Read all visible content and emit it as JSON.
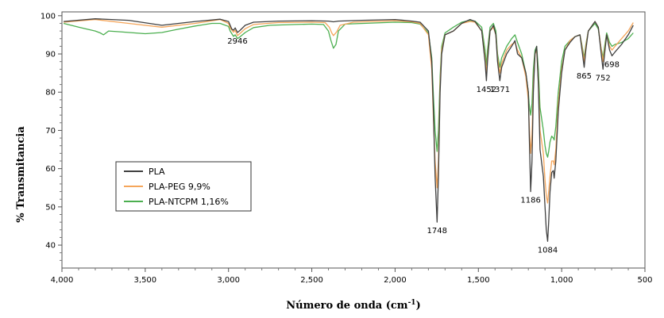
{
  "chart_data": {
    "type": "line",
    "title": "",
    "xlabel": "Número de onda (cm",
    "xlabel_sup": "-1",
    "xlabel_end": ")",
    "ylabel": "% Transmitancia",
    "xlim": [
      4000,
      500
    ],
    "ylim": [
      34,
      101
    ],
    "x_ticks": [
      4000,
      3500,
      3000,
      2500,
      2000,
      1500,
      1000,
      500
    ],
    "x_tick_labels": [
      "4,000",
      "3,500",
      "3,000",
      "2,500",
      "2,000",
      "1,500",
      "1,000",
      "500"
    ],
    "y_ticks": [
      40,
      50,
      60,
      70,
      80,
      90,
      100
    ],
    "y_tick_labels": [
      "40",
      "50",
      "60",
      "70",
      "80",
      "90",
      "100"
    ],
    "legend_position": "bottom-left",
    "grid": false,
    "series": [
      {
        "name": "PLA",
        "color": "#404040",
        "points": [
          [
            3990,
            98.5
          ],
          [
            3800,
            99.2
          ],
          [
            3600,
            98.8
          ],
          [
            3400,
            97.5
          ],
          [
            3200,
            98.5
          ],
          [
            3050,
            99.1
          ],
          [
            3000,
            98.5
          ],
          [
            2990,
            97.5
          ],
          [
            2980,
            96.5
          ],
          [
            2970,
            96.2
          ],
          [
            2960,
            96.8
          ],
          [
            2946,
            95.6
          ],
          [
            2930,
            96.2
          ],
          [
            2900,
            97.5
          ],
          [
            2850,
            98.3
          ],
          [
            2700,
            98.6
          ],
          [
            2500,
            98.7
          ],
          [
            2400,
            98.6
          ],
          [
            2370,
            98.4
          ],
          [
            2340,
            98.6
          ],
          [
            2200,
            98.8
          ],
          [
            2000,
            99.0
          ],
          [
            1900,
            98.6
          ],
          [
            1850,
            98.3
          ],
          [
            1800,
            96.0
          ],
          [
            1780,
            88.0
          ],
          [
            1770,
            75.0
          ],
          [
            1760,
            58.0
          ],
          [
            1748,
            46.0
          ],
          [
            1740,
            58.0
          ],
          [
            1730,
            80.0
          ],
          [
            1720,
            90.0
          ],
          [
            1700,
            95.0
          ],
          [
            1650,
            96.0
          ],
          [
            1600,
            98.0
          ],
          [
            1550,
            99.0
          ],
          [
            1520,
            98.5
          ],
          [
            1480,
            96.0
          ],
          [
            1460,
            88.0
          ],
          [
            1452,
            83.0
          ],
          [
            1445,
            88.0
          ],
          [
            1430,
            96.0
          ],
          [
            1410,
            97.5
          ],
          [
            1395,
            95.0
          ],
          [
            1385,
            88.0
          ],
          [
            1371,
            83.0
          ],
          [
            1360,
            86.5
          ],
          [
            1330,
            90.0
          ],
          [
            1300,
            92.0
          ],
          [
            1280,
            93.5
          ],
          [
            1265,
            90.0
          ],
          [
            1240,
            89.0
          ],
          [
            1215,
            85.0
          ],
          [
            1200,
            80.0
          ],
          [
            1195,
            70.0
          ],
          [
            1186,
            54.0
          ],
          [
            1178,
            62.0
          ],
          [
            1170,
            80.0
          ],
          [
            1160,
            90.0
          ],
          [
            1150,
            92.0
          ],
          [
            1140,
            82.0
          ],
          [
            1130,
            65.0
          ],
          [
            1110,
            58.0
          ],
          [
            1100,
            50.0
          ],
          [
            1092,
            44.0
          ],
          [
            1084,
            41.0
          ],
          [
            1078,
            46.0
          ],
          [
            1070,
            54.0
          ],
          [
            1060,
            59.0
          ],
          [
            1050,
            59.5
          ],
          [
            1045,
            57.5
          ],
          [
            1035,
            62.0
          ],
          [
            1020,
            75.0
          ],
          [
            1000,
            85.0
          ],
          [
            980,
            91.0
          ],
          [
            950,
            93.0
          ],
          [
            920,
            94.5
          ],
          [
            890,
            95.0
          ],
          [
            875,
            90.0
          ],
          [
            865,
            86.5
          ],
          [
            855,
            91.0
          ],
          [
            840,
            96.0
          ],
          [
            800,
            98.5
          ],
          [
            780,
            97.0
          ],
          [
            765,
            91.0
          ],
          [
            752,
            86.0
          ],
          [
            742,
            90.0
          ],
          [
            730,
            95.0
          ],
          [
            712,
            91.0
          ],
          [
            698,
            89.5
          ],
          [
            680,
            90.5
          ],
          [
            640,
            92.5
          ],
          [
            600,
            95.0
          ],
          [
            570,
            97.5
          ]
        ]
      },
      {
        "name": "PLA-PEG 9,9%",
        "color": "#F5A65B",
        "points": [
          [
            3990,
            98.3
          ],
          [
            3800,
            99.0
          ],
          [
            3600,
            98.0
          ],
          [
            3400,
            97.0
          ],
          [
            3200,
            98.0
          ],
          [
            3050,
            99.0
          ],
          [
            3000,
            98.0
          ],
          [
            2990,
            96.8
          ],
          [
            2970,
            95.7
          ],
          [
            2960,
            96.2
          ],
          [
            2946,
            94.8
          ],
          [
            2930,
            95.4
          ],
          [
            2900,
            96.6
          ],
          [
            2850,
            97.7
          ],
          [
            2700,
            98.2
          ],
          [
            2500,
            98.3
          ],
          [
            2420,
            98.2
          ],
          [
            2395,
            97.0
          ],
          [
            2380,
            95.5
          ],
          [
            2370,
            94.8
          ],
          [
            2350,
            95.8
          ],
          [
            2330,
            97.5
          ],
          [
            2250,
            98.3
          ],
          [
            2000,
            98.7
          ],
          [
            1900,
            98.4
          ],
          [
            1850,
            98.0
          ],
          [
            1800,
            95.0
          ],
          [
            1780,
            86.0
          ],
          [
            1770,
            73.0
          ],
          [
            1760,
            62.0
          ],
          [
            1748,
            55.0
          ],
          [
            1740,
            62.0
          ],
          [
            1730,
            82.0
          ],
          [
            1720,
            91.0
          ],
          [
            1700,
            95.0
          ],
          [
            1650,
            96.0
          ],
          [
            1600,
            98.0
          ],
          [
            1550,
            98.5
          ],
          [
            1520,
            98.3
          ],
          [
            1480,
            96.0
          ],
          [
            1460,
            89.0
          ],
          [
            1452,
            85.0
          ],
          [
            1445,
            89.0
          ],
          [
            1430,
            96.0
          ],
          [
            1410,
            97.0
          ],
          [
            1395,
            95.0
          ],
          [
            1385,
            89.0
          ],
          [
            1371,
            85.0
          ],
          [
            1360,
            87.5
          ],
          [
            1330,
            91.0
          ],
          [
            1300,
            92.5
          ],
          [
            1280,
            93.0
          ],
          [
            1265,
            91.0
          ],
          [
            1240,
            89.0
          ],
          [
            1215,
            84.0
          ],
          [
            1200,
            78.0
          ],
          [
            1195,
            72.0
          ],
          [
            1186,
            64.0
          ],
          [
            1178,
            69.0
          ],
          [
            1170,
            82.0
          ],
          [
            1160,
            90.0
          ],
          [
            1150,
            91.0
          ],
          [
            1140,
            83.0
          ],
          [
            1130,
            70.0
          ],
          [
            1110,
            64.0
          ],
          [
            1100,
            57.0
          ],
          [
            1092,
            53.0
          ],
          [
            1084,
            51.0
          ],
          [
            1078,
            54.0
          ],
          [
            1070,
            58.0
          ],
          [
            1060,
            62.0
          ],
          [
            1050,
            62.0
          ],
          [
            1045,
            61.0
          ],
          [
            1035,
            65.0
          ],
          [
            1020,
            77.0
          ],
          [
            1000,
            86.0
          ],
          [
            980,
            91.0
          ],
          [
            950,
            93.5
          ],
          [
            920,
            94.5
          ],
          [
            890,
            95.0
          ],
          [
            875,
            91.0
          ],
          [
            865,
            88.0
          ],
          [
            855,
            92.0
          ],
          [
            840,
            96.0
          ],
          [
            800,
            98.5
          ],
          [
            780,
            97.0
          ],
          [
            765,
            92.0
          ],
          [
            752,
            88.0
          ],
          [
            742,
            91.0
          ],
          [
            730,
            95.0
          ],
          [
            712,
            92.0
          ],
          [
            698,
            91.0
          ],
          [
            680,
            92.0
          ],
          [
            640,
            94.0
          ],
          [
            600,
            96.0
          ],
          [
            570,
            98.2
          ]
        ]
      },
      {
        "name": "PLA-NTCPM 1,16%",
        "color": "#4CAF50",
        "points": [
          [
            3990,
            98.0
          ],
          [
            3900,
            97.0
          ],
          [
            3800,
            96.0
          ],
          [
            3770,
            95.5
          ],
          [
            3750,
            95.0
          ],
          [
            3720,
            96.0
          ],
          [
            3650,
            95.8
          ],
          [
            3500,
            95.3
          ],
          [
            3400,
            95.6
          ],
          [
            3300,
            96.5
          ],
          [
            3200,
            97.3
          ],
          [
            3100,
            98.0
          ],
          [
            3050,
            98.0
          ],
          [
            3000,
            97.2
          ],
          [
            2990,
            96.0
          ],
          [
            2970,
            94.6
          ],
          [
            2960,
            95.0
          ],
          [
            2946,
            94.0
          ],
          [
            2930,
            94.5
          ],
          [
            2900,
            95.6
          ],
          [
            2850,
            96.9
          ],
          [
            2750,
            97.5
          ],
          [
            2600,
            97.7
          ],
          [
            2500,
            97.8
          ],
          [
            2430,
            97.7
          ],
          [
            2400,
            96.0
          ],
          [
            2385,
            93.5
          ],
          [
            2370,
            91.5
          ],
          [
            2355,
            92.5
          ],
          [
            2340,
            96.0
          ],
          [
            2300,
            97.8
          ],
          [
            2000,
            98.3
          ],
          [
            1900,
            98.2
          ],
          [
            1850,
            97.8
          ],
          [
            1800,
            95.5
          ],
          [
            1780,
            89.0
          ],
          [
            1770,
            79.0
          ],
          [
            1760,
            70.0
          ],
          [
            1748,
            64.5
          ],
          [
            1740,
            70.0
          ],
          [
            1730,
            84.0
          ],
          [
            1720,
            92.0
          ],
          [
            1700,
            95.5
          ],
          [
            1650,
            97.0
          ],
          [
            1600,
            98.3
          ],
          [
            1550,
            98.8
          ],
          [
            1520,
            98.6
          ],
          [
            1480,
            97.0
          ],
          [
            1460,
            91.0
          ],
          [
            1452,
            87.0
          ],
          [
            1445,
            91.0
          ],
          [
            1430,
            97.0
          ],
          [
            1410,
            98.0
          ],
          [
            1395,
            96.0
          ],
          [
            1385,
            90.0
          ],
          [
            1371,
            86.5
          ],
          [
            1360,
            89.0
          ],
          [
            1330,
            92.0
          ],
          [
            1300,
            94.0
          ],
          [
            1280,
            95.0
          ],
          [
            1265,
            93.0
          ],
          [
            1240,
            90.0
          ],
          [
            1215,
            85.0
          ],
          [
            1200,
            80.0
          ],
          [
            1195,
            77.0
          ],
          [
            1186,
            74.0
          ],
          [
            1178,
            77.0
          ],
          [
            1170,
            86.0
          ],
          [
            1160,
            91.0
          ],
          [
            1150,
            92.0
          ],
          [
            1140,
            86.0
          ],
          [
            1130,
            76.0
          ],
          [
            1110,
            70.0
          ],
          [
            1100,
            66.0
          ],
          [
            1092,
            64.0
          ],
          [
            1084,
            63.0
          ],
          [
            1078,
            64.5
          ],
          [
            1070,
            67.0
          ],
          [
            1060,
            68.5
          ],
          [
            1050,
            68.0
          ],
          [
            1045,
            67.5
          ],
          [
            1035,
            71.0
          ],
          [
            1020,
            80.0
          ],
          [
            1000,
            88.0
          ],
          [
            980,
            92.0
          ],
          [
            950,
            93.5
          ],
          [
            920,
            94.5
          ],
          [
            890,
            95.0
          ],
          [
            875,
            91.5
          ],
          [
            865,
            89.0
          ],
          [
            855,
            92.5
          ],
          [
            840,
            96.0
          ],
          [
            800,
            98.0
          ],
          [
            780,
            96.5
          ],
          [
            765,
            92.0
          ],
          [
            752,
            89.0
          ],
          [
            742,
            92.0
          ],
          [
            730,
            95.5
          ],
          [
            712,
            93.0
          ],
          [
            698,
            92.0
          ],
          [
            680,
            92.5
          ],
          [
            640,
            93.0
          ],
          [
            600,
            94.0
          ],
          [
            570,
            95.5
          ]
        ]
      }
    ],
    "annotations": [
      {
        "label": "2946",
        "x": 2946,
        "y": 95.6
      },
      {
        "label": "1748",
        "x": 1748,
        "y": 46.0
      },
      {
        "label": "1452",
        "x": 1452,
        "y": 83.0
      },
      {
        "label": "1371",
        "x": 1371,
        "y": 83.0
      },
      {
        "label": "1186",
        "x": 1186,
        "y": 54.0
      },
      {
        "label": "1084",
        "x": 1084,
        "y": 41.0
      },
      {
        "label": "865",
        "x": 865,
        "y": 86.5
      },
      {
        "label": "752",
        "x": 752,
        "y": 86.0
      },
      {
        "label": "698",
        "x": 698,
        "y": 89.5
      }
    ]
  }
}
